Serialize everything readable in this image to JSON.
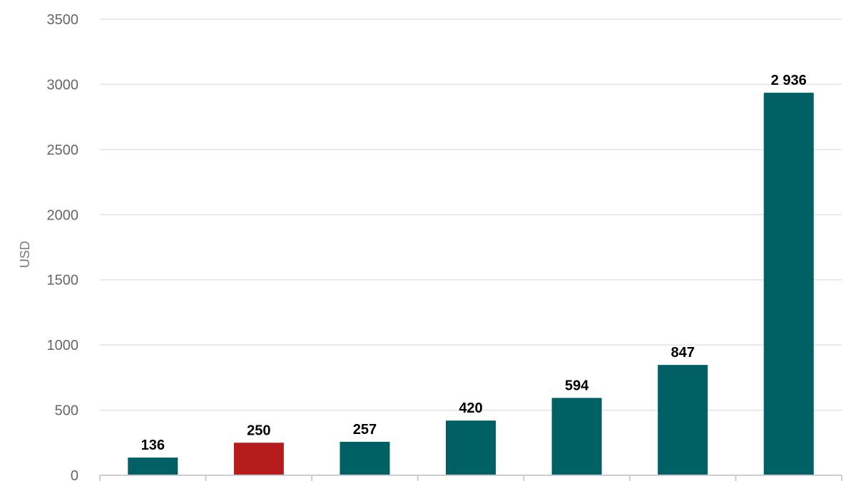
{
  "chart_data": {
    "type": "bar",
    "ylabel": "USD",
    "ylim": [
      0,
      3500
    ],
    "yticks": [
      0,
      500,
      1000,
      1500,
      2000,
      2500,
      3000,
      3500
    ],
    "grid": true,
    "categories": [
      "",
      "",
      "",
      "",
      "",
      "",
      ""
    ],
    "values": [
      136,
      250,
      257,
      420,
      594,
      847,
      2936
    ],
    "data_labels": [
      "136",
      "250",
      "257",
      "420",
      "594",
      "847",
      "2 936"
    ],
    "highlight_index": 1,
    "colors": {
      "bar": "#006064",
      "highlight": "#b71c1c",
      "grid": "#e0e3e6",
      "axis": "#c8ced6"
    }
  }
}
